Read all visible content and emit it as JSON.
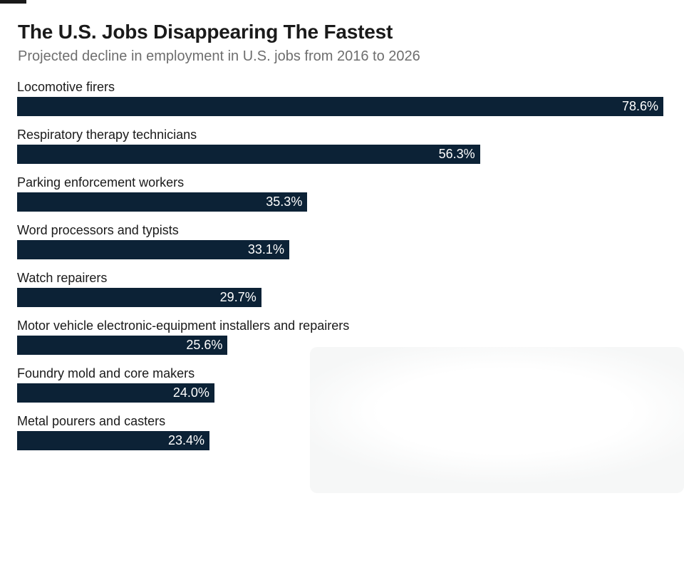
{
  "page": {
    "background_color": "#ffffff",
    "top_left_dash_color": "#1a1a1a",
    "watermark_tint_color": "#f6f7f7"
  },
  "header": {
    "title": "The U.S. Jobs Disappearing The Fastest",
    "subtitle": "Projected decline in employment in U.S. jobs from 2016 to 2026",
    "title_color": "#1a1a1a",
    "subtitle_color": "#6e6e6e"
  },
  "chart_data": {
    "type": "bar",
    "orientation": "horizontal",
    "title": "The U.S. Jobs Disappearing The Fastest",
    "subtitle": "Projected decline in employment in U.S. jobs from 2016 to 2026",
    "categories": [
      "Locomotive firers",
      "Respiratory therapy technicians",
      "Parking enforcement workers",
      "Word processors and typists",
      "Watch repairers",
      "Motor vehicle electronic-equipment installers and repairers",
      "Foundry mold and core makers",
      "Metal pourers and casters"
    ],
    "values": [
      78.6,
      56.3,
      35.3,
      33.1,
      29.7,
      25.6,
      24.0,
      23.4
    ],
    "value_labels": [
      "78.6%",
      "56.3%",
      "35.3%",
      "33.1%",
      "29.7%",
      "25.6%",
      "24.0%",
      "23.4%"
    ],
    "xlabel": "",
    "ylabel": "",
    "xlim": [
      0,
      78.6
    ],
    "grid": false,
    "legend": "none",
    "value_label_position": "inside-right",
    "bar_color": "#0c2236",
    "value_label_color": "#ffffff",
    "category_label_color": "#1a1a1a"
  }
}
